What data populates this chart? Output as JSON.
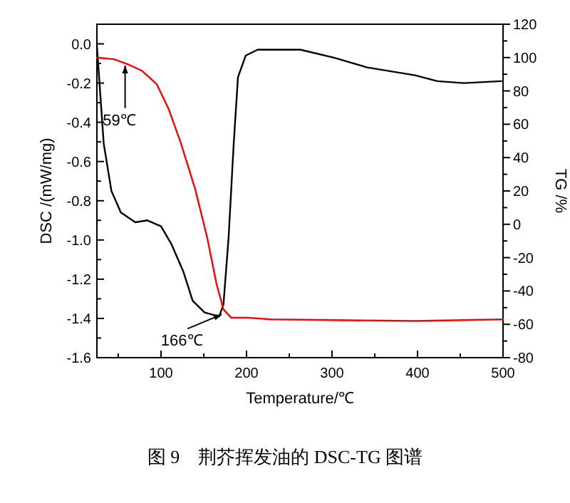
{
  "chart_data": {
    "type": "line",
    "xlabel": "Temperature/℃",
    "ylabel": "DSC /(mW/mg)",
    "y2label": "TG /%",
    "xlim": [
      25,
      500
    ],
    "xticks": [
      {
        "value": 50,
        "label": null
      },
      100,
      {
        "value": 150,
        "label": null
      },
      200,
      {
        "value": 250,
        "label": null
      },
      300,
      {
        "value": 350,
        "label": null
      },
      400,
      {
        "value": 450,
        "label": null
      },
      500
    ],
    "ylim": [
      -1.6,
      0.1
    ],
    "yticks": [
      {
        "value": -1.6,
        "label": "-1.6"
      },
      {
        "value": -1.5,
        "label": null
      },
      {
        "value": -1.4,
        "label": "-1.4"
      },
      {
        "value": -1.3,
        "label": null
      },
      {
        "value": -1.2,
        "label": "-1.2"
      },
      {
        "value": -1.1,
        "label": null
      },
      {
        "value": -1,
        "label": "-1.0"
      },
      {
        "value": -0.9,
        "label": null
      },
      {
        "value": -0.8,
        "label": "-0.8"
      },
      {
        "value": -0.7,
        "label": null
      },
      {
        "value": -0.6,
        "label": "-0.6"
      },
      {
        "value": -0.5,
        "label": null
      },
      {
        "value": -0.4,
        "label": "-0.4"
      },
      {
        "value": -0.3,
        "label": null
      },
      {
        "value": -0.2,
        "label": "-0.2"
      },
      {
        "value": -0.1,
        "label": null
      },
      {
        "value": 0,
        "label": "0.0"
      }
    ],
    "y2lim": [
      -80,
      120
    ],
    "y2ticks": [
      -80,
      {
        "value": -70,
        "label": null
      },
      -60,
      {
        "value": -50,
        "label": null
      },
      -40,
      {
        "value": -30,
        "label": null
      },
      -20,
      {
        "value": -10,
        "label": null
      },
      0,
      {
        "value": 10,
        "label": null
      },
      20,
      {
        "value": 30,
        "label": null
      },
      40,
      {
        "value": 50,
        "label": null
      },
      60,
      {
        "value": 70,
        "label": null
      },
      80,
      {
        "value": 90,
        "label": null
      },
      100,
      {
        "value": 110,
        "label": null
      },
      120
    ],
    "marker": "none",
    "line_style": "solid",
    "series": [
      {
        "color": "#000000",
        "x": [
          25,
          29,
          33,
          42,
          53,
          70,
          84,
          100,
          112,
          126,
          137,
          151,
          168,
          173,
          179,
          185,
          190,
          199,
          213,
          233,
          263,
          302,
          341,
          397,
          423,
          454,
          498
        ],
        "values": [
          -0.01,
          -0.26,
          -0.51,
          -0.75,
          -0.86,
          -0.91,
          -0.9,
          -0.93,
          -1.02,
          -1.16,
          -1.31,
          -1.37,
          -1.39,
          -1.33,
          -0.99,
          -0.51,
          -0.17,
          -0.06,
          -0.03,
          -0.03,
          -0.03,
          -0.07,
          -0.12,
          -0.16,
          -0.19,
          -0.2,
          -0.19
        ]
      },
      {
        "color": "#ff0000",
        "axis": "y2",
        "x": [
          25,
          45,
          61,
          78,
          95,
          109,
          123,
          140,
          154,
          165,
          173,
          182,
          201,
          229,
          397,
          500
        ],
        "values": [
          100,
          99,
          96,
          92,
          84,
          69,
          49,
          21,
          -8,
          -36,
          -51,
          -56,
          -56,
          -57,
          -58,
          -57
        ]
      }
    ],
    "annotations": [
      {
        "text": "59℃",
        "x": 58,
        "y": -0.11
      },
      {
        "text": "166℃",
        "x": 171,
        "y": -1.38
      },
      "图 9　荆芥挥发油的 DSC-TG 图谱"
    ]
  }
}
